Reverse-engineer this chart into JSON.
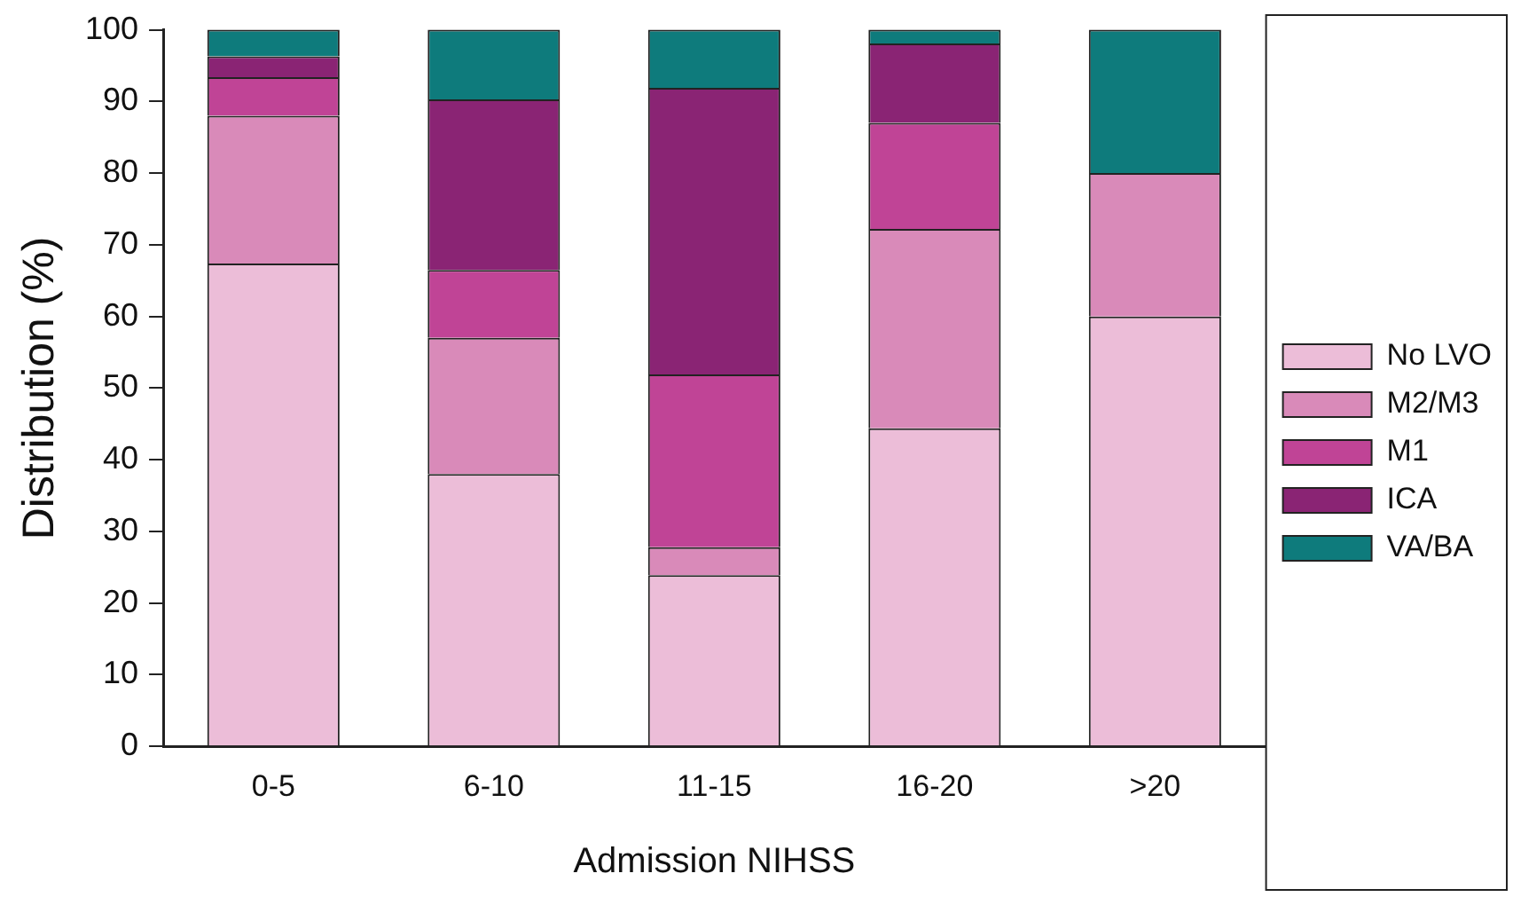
{
  "chart_data": {
    "type": "bar",
    "stacked": true,
    "xlabel": "Admission NIHSS",
    "ylabel": "Distribution (%)",
    "categories": [
      "0-5",
      "6-10",
      "11-15",
      "16-20",
      ">20"
    ],
    "ylim": [
      0,
      100
    ],
    "yticks": [
      0,
      10,
      20,
      30,
      40,
      50,
      60,
      70,
      80,
      90,
      100
    ],
    "grid": false,
    "legend": "right",
    "series": [
      {
        "name": "No LVO",
        "color": "#ecbdd8",
        "values": [
          67.4,
          38.0,
          23.9,
          44.4,
          60.0
        ]
      },
      {
        "name": "M2/M3",
        "color": "#d98ab9",
        "values": [
          20.6,
          19.0,
          3.9,
          27.8,
          20.0
        ]
      },
      {
        "name": "M1",
        "color": "#c04496",
        "values": [
          5.4,
          9.5,
          24.1,
          14.8,
          0
        ]
      },
      {
        "name": "ICA",
        "color": "#8a2474",
        "values": [
          2.9,
          23.8,
          40.0,
          11.1,
          0
        ]
      },
      {
        "name": "VA/BA",
        "color": "#0e7b7c",
        "values": [
          3.7,
          9.7,
          8.1,
          1.9,
          20.0
        ]
      }
    ]
  }
}
